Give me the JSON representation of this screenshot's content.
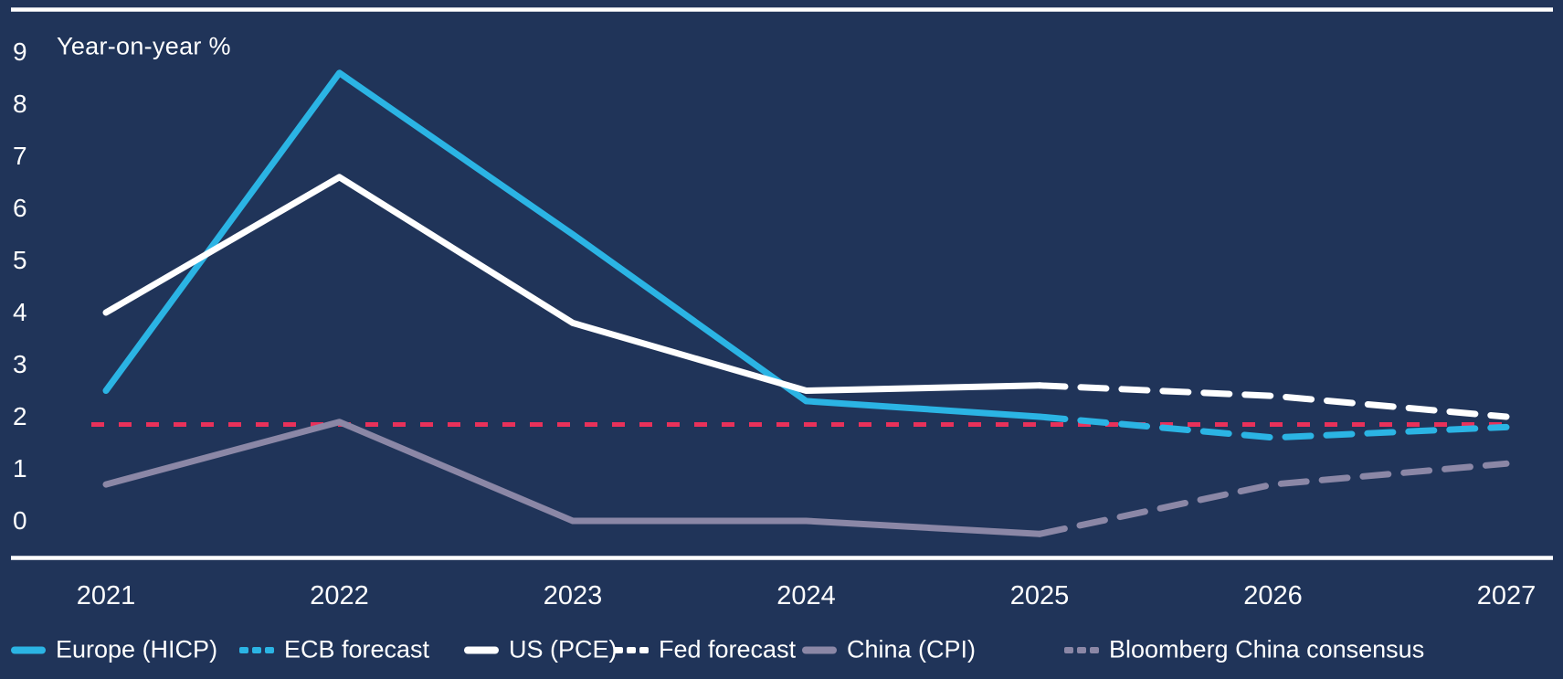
{
  "canvas": {
    "background_color": "#203459",
    "rule_color": "#ffffff",
    "text_color": "#ffffff"
  },
  "chart_data": {
    "type": "line",
    "title": "",
    "ylabel_annotation": "Year-on-year %",
    "x": [
      "2021",
      "2022",
      "2023",
      "2024",
      "2025",
      "2026",
      "2027"
    ],
    "yticks": [
      "0",
      "1",
      "2",
      "3",
      "4",
      "5",
      "6",
      "7",
      "8",
      "9"
    ],
    "ylim": [
      -0.7,
      9.4
    ],
    "grid": false,
    "legend_position": "bottom",
    "series": [
      {
        "name": "Europe (HICP)",
        "color": "#2bb4e4",
        "line_style": "solid",
        "values": [
          2.5,
          8.6,
          5.5,
          2.3,
          2.0,
          null,
          null
        ]
      },
      {
        "name": "ECB forecast",
        "color": "#2bb4e4",
        "line_style": "dashed",
        "values": [
          null,
          null,
          null,
          null,
          2.0,
          1.6,
          1.8
        ]
      },
      {
        "name": "US (PCE)",
        "color": "#ffffff",
        "line_style": "solid",
        "values": [
          4.0,
          6.6,
          3.8,
          2.5,
          2.6,
          null,
          null
        ]
      },
      {
        "name": "Fed forecast",
        "color": "#ffffff",
        "line_style": "dashed",
        "values": [
          null,
          null,
          null,
          null,
          2.6,
          2.4,
          2.0
        ]
      },
      {
        "name": "China (CPI)",
        "color": "#8b87a6",
        "line_style": "solid",
        "values": [
          0.7,
          1.9,
          0.0,
          0.0,
          -0.25,
          null,
          null
        ]
      },
      {
        "name": "Bloomberg China consensus",
        "color": "#8b87a6",
        "line_style": "dashed",
        "values": [
          null,
          null,
          null,
          null,
          -0.25,
          0.7,
          1.1
        ]
      }
    ],
    "target_line": {
      "value": 1.85,
      "color": "#e8315a",
      "style": "dashed"
    }
  },
  "legend": {
    "items": [
      {
        "label": "Europe (HICP)",
        "color": "#2bb4e4",
        "line_style": "solid"
      },
      {
        "label": "ECB forecast",
        "color": "#2bb4e4",
        "line_style": "dashed"
      },
      {
        "label": "US (PCE)",
        "color": "#ffffff",
        "line_style": "solid"
      },
      {
        "label": "Fed forecast",
        "color": "#ffffff",
        "line_style": "dashed"
      },
      {
        "label": "China (CPI)",
        "color": "#8b87a6",
        "line_style": "solid"
      },
      {
        "label": "Bloomberg China consensus",
        "color": "#8b87a6",
        "line_style": "dashed"
      }
    ]
  }
}
